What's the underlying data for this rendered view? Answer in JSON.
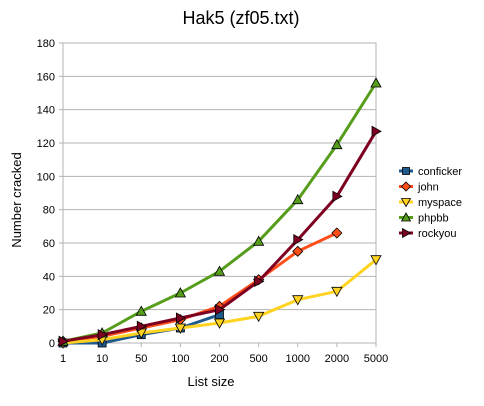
{
  "chart_data": {
    "type": "line",
    "title": "Hak5 (zf05.txt)",
    "xlabel": "List size",
    "ylabel": "Number cracked",
    "categories": [
      "1",
      "10",
      "50",
      "100",
      "200",
      "500",
      "1000",
      "2000",
      "5000"
    ],
    "ylim": [
      0,
      180
    ],
    "yticks": [
      0,
      20,
      40,
      60,
      80,
      100,
      120,
      140,
      160,
      180
    ],
    "grid": true,
    "legend_position": "right",
    "series": [
      {
        "name": "conficker",
        "color": "#1f5a8c",
        "marker": "square",
        "values": [
          0,
          0,
          5,
          9,
          17,
          null,
          null,
          null,
          null
        ]
      },
      {
        "name": "john",
        "color": "#ff4e1a",
        "marker": "diamond",
        "values": [
          1,
          4,
          9,
          14,
          22,
          38,
          55,
          66,
          null
        ]
      },
      {
        "name": "myspace",
        "color": "#ffd320",
        "marker": "triangle-down",
        "values": [
          0,
          2,
          6,
          9,
          12,
          16,
          26,
          31,
          50
        ]
      },
      {
        "name": "phpbb",
        "color": "#579d1c",
        "marker": "triangle-up",
        "values": [
          1,
          6,
          19,
          30,
          43,
          61,
          86,
          119,
          156
        ]
      },
      {
        "name": "rockyou",
        "color": "#7e0021",
        "marker": "triangle-right",
        "values": [
          1,
          5,
          10,
          15,
          20,
          37,
          62,
          88,
          127
        ]
      }
    ]
  }
}
